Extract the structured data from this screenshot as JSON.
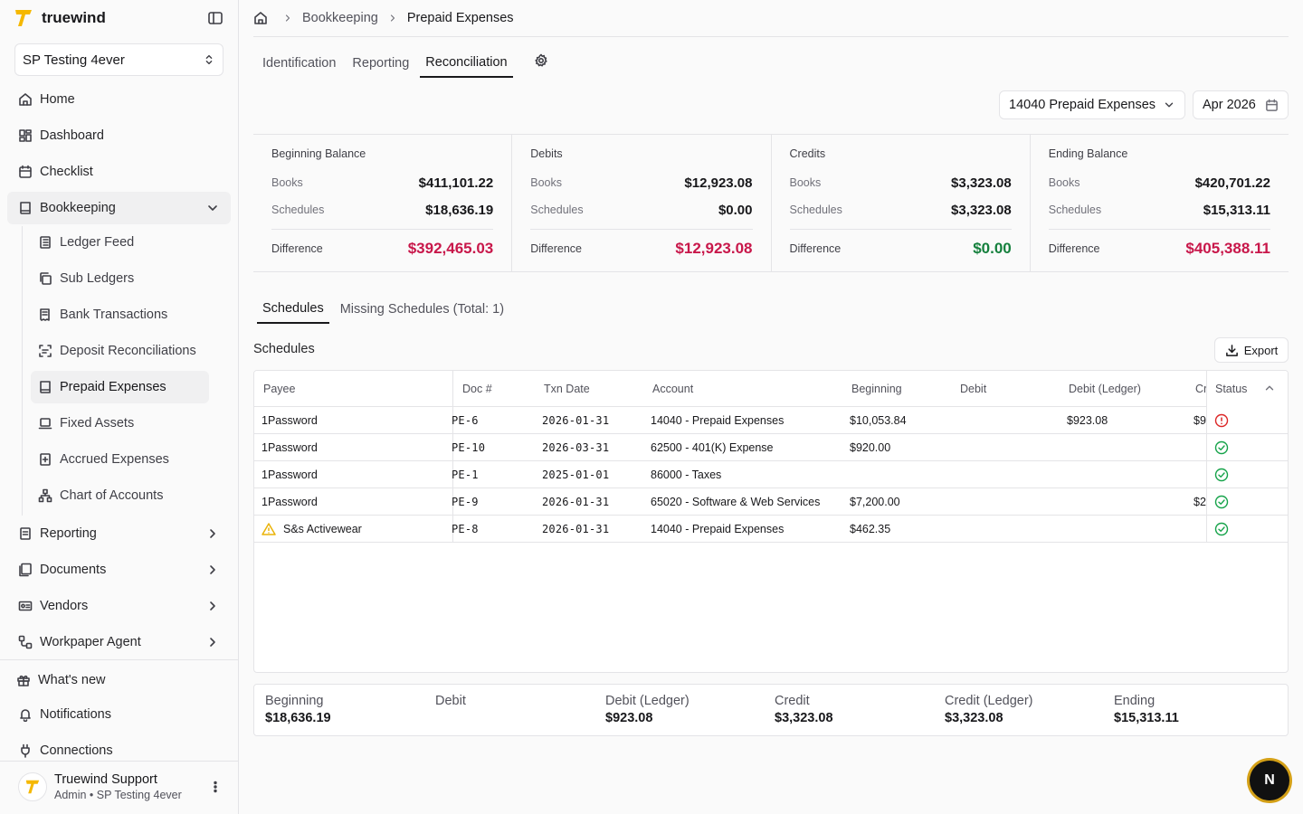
{
  "app": {
    "brand": "truewind",
    "brand_color": "#f5b800"
  },
  "org": {
    "name": "SP Testing 4ever"
  },
  "nav": {
    "home": "Home",
    "dashboard": "Dashboard",
    "checklist": "Checklist",
    "bookkeeping": "Bookkeeping",
    "sub": {
      "ledger_feed": "Ledger Feed",
      "sub_ledgers": "Sub Ledgers",
      "bank_transactions": "Bank Transactions",
      "deposit_reconciliations": "Deposit Reconciliations",
      "prepaid_expenses": "Prepaid Expenses",
      "fixed_assets": "Fixed Assets",
      "accrued_expenses": "Accrued Expenses",
      "chart_of_accounts": "Chart of Accounts"
    },
    "reporting": "Reporting",
    "documents": "Documents",
    "vendors": "Vendors",
    "workpaper_agent": "Workpaper Agent",
    "whats_new": "What's new",
    "notifications": "Notifications",
    "connections": "Connections"
  },
  "user": {
    "name": "Truewind Support",
    "role": "Admin • SP Testing 4ever"
  },
  "breadcrumb": {
    "section": "Bookkeeping",
    "current": "Prepaid Expenses"
  },
  "tabs": {
    "identification": "Identification",
    "reporting": "Reporting",
    "reconciliation": "Reconciliation"
  },
  "filters": {
    "account": "14040 Prepaid Expenses",
    "period": "Apr 2026"
  },
  "summary": [
    {
      "title": "Beginning Balance",
      "books_label": "Books",
      "books": "$411,101.22",
      "schedules_label": "Schedules",
      "schedules": "$18,636.19",
      "diff_label": "Difference",
      "diff": "$392,465.03",
      "diff_status": "negative"
    },
    {
      "title": "Debits",
      "books_label": "Books",
      "books": "$12,923.08",
      "schedules_label": "Schedules",
      "schedules": "$0.00",
      "diff_label": "Difference",
      "diff": "$12,923.08",
      "diff_status": "negative"
    },
    {
      "title": "Credits",
      "books_label": "Books",
      "books": "$3,323.08",
      "schedules_label": "Schedules",
      "schedules": "$3,323.08",
      "diff_label": "Difference",
      "diff": "$0.00",
      "diff_status": "positive"
    },
    {
      "title": "Ending Balance",
      "books_label": "Books",
      "books": "$420,701.22",
      "schedules_label": "Schedules",
      "schedules": "$15,313.11",
      "diff_label": "Difference",
      "diff": "$405,388.11",
      "diff_status": "negative"
    }
  ],
  "subtabs": {
    "schedules": "Schedules",
    "missing": "Missing Schedules (Total: 1)"
  },
  "section": {
    "title": "Schedules",
    "export": "Export"
  },
  "table": {
    "headers": {
      "payee": "Payee",
      "doc": "Doc #",
      "date": "Txn Date",
      "account": "Account",
      "beginning": "Beginning",
      "debit": "Debit",
      "debit_ledger": "Debit (Ledger)",
      "credit_clipped": "Cr",
      "status": "Status"
    },
    "rows": [
      {
        "payee": "1Password",
        "doc": "PE-6",
        "date": "2026-01-31",
        "account": "14040 - Prepaid Expenses",
        "beginning": "$10,053.84",
        "debit": "",
        "debit_ledger": "$923.08",
        "credit_clipped": "$9",
        "status": "error",
        "warn": false
      },
      {
        "payee": "1Password",
        "doc": "PE-10",
        "date": "2026-03-31",
        "account": "62500 - 401(K) Expense",
        "beginning": "$920.00",
        "debit": "",
        "debit_ledger": "",
        "credit_clipped": "",
        "status": "ok",
        "warn": false
      },
      {
        "payee": "1Password",
        "doc": "PE-1",
        "date": "2025-01-01",
        "account": "86000 - Taxes",
        "beginning": "",
        "debit": "",
        "debit_ledger": "",
        "credit_clipped": "",
        "status": "ok",
        "warn": false
      },
      {
        "payee": "1Password",
        "doc": "PE-9",
        "date": "2026-01-31",
        "account": "65020 - Software & Web Services",
        "beginning": "$7,200.00",
        "debit": "",
        "debit_ledger": "",
        "credit_clipped": "$2",
        "status": "ok",
        "warn": false
      },
      {
        "payee": "S&s Activewear",
        "doc": "PE-8",
        "date": "2026-01-31",
        "account": "14040 - Prepaid Expenses",
        "beginning": "$462.35",
        "debit": "",
        "debit_ledger": "",
        "credit_clipped": "",
        "status": "ok",
        "warn": true
      }
    ]
  },
  "totals": [
    {
      "label": "Beginning",
      "value": "$18,636.19"
    },
    {
      "label": "Debit",
      "value": ""
    },
    {
      "label": "Debit (Ledger)",
      "value": "$923.08"
    },
    {
      "label": "Credit",
      "value": "$3,323.08"
    },
    {
      "label": "Credit (Ledger)",
      "value": "$3,323.08"
    },
    {
      "label": "Ending",
      "value": "$15,313.11"
    }
  ],
  "fab": {
    "label": "N"
  },
  "colors": {
    "negative": "#c8174a",
    "positive": "#15803d",
    "error": "#dc2626",
    "ok": "#16a34a",
    "warn": "#eab308"
  }
}
